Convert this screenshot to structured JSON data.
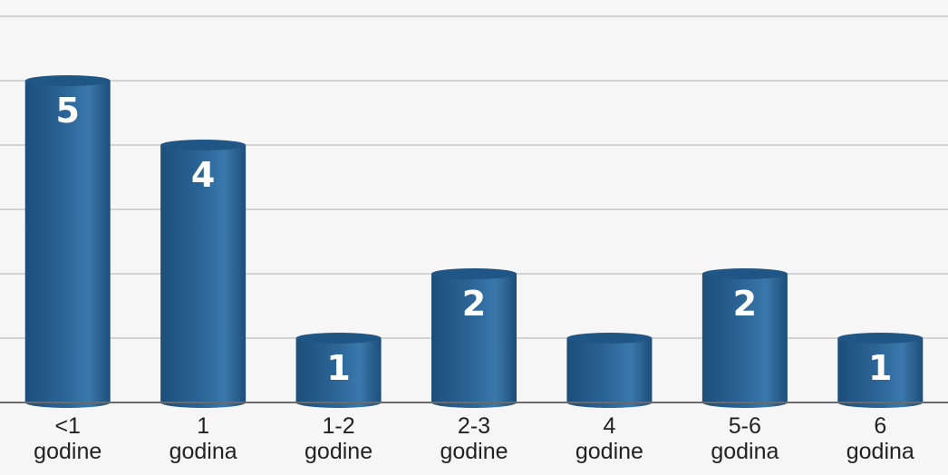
{
  "chart_data": {
    "type": "bar",
    "style": "3d-cylinder",
    "categories": [
      [
        "<1",
        "godine"
      ],
      [
        "1",
        "godina"
      ],
      [
        "1-2",
        "godine"
      ],
      [
        "2-3",
        "godine"
      ],
      [
        "4",
        "godine"
      ],
      [
        "5-6",
        "godina"
      ],
      [
        "6",
        "godina"
      ]
    ],
    "values": [
      5,
      4,
      1,
      2,
      1,
      2,
      1
    ],
    "value_labels": [
      "5",
      "4",
      "1",
      "2",
      "",
      "2",
      "1"
    ],
    "ylim": [
      0,
      6
    ],
    "grid": true,
    "title": "",
    "xlabel": "",
    "ylabel": ""
  },
  "colors": {
    "background": "#f6f6f6",
    "bar": "#2a6496",
    "bar_dark": "#1d4e79",
    "bar_light": "#3a78ab",
    "bar_top": "#1f5685",
    "grid": "#c8c8c8",
    "axis": "#6b6b6b",
    "label_text": "#ffffff",
    "category_text": "#222222"
  }
}
